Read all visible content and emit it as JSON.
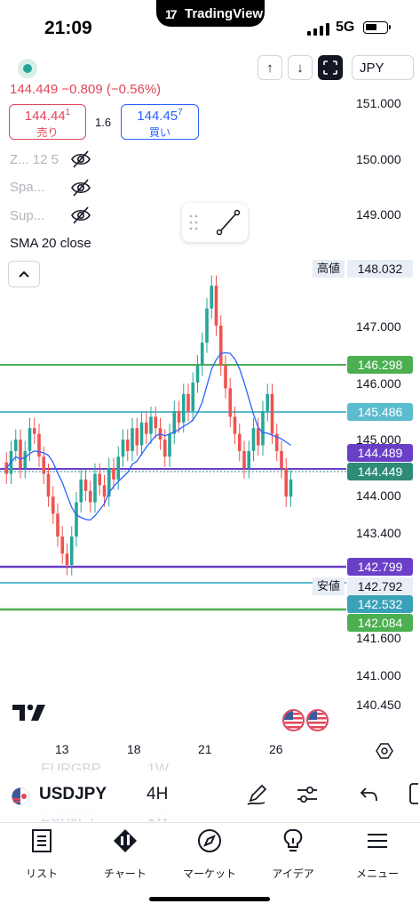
{
  "status_bar": {
    "time": "21:09",
    "app": "TradingView",
    "network": "5G"
  },
  "toolbar": {
    "currency": "JPY",
    "up_arrow": "↑",
    "down_arrow": "↓"
  },
  "quote": {
    "last": "144.449",
    "change": "−0.809",
    "change_pct": "(−0.56%)",
    "sell_price_main": "144.44",
    "sell_price_sup": "1",
    "sell_label": "売り",
    "buy_price_main": "144.45",
    "buy_price_sup": "7",
    "buy_label": "買い",
    "spread": "1.6"
  },
  "indicators": [
    {
      "label": "Z... 12 5"
    },
    {
      "label": "Spa..."
    },
    {
      "label": "Sup..."
    }
  ],
  "sma_label": "SMA 20 close",
  "axis": {
    "ticks": [
      "151.000",
      "150.000",
      "149.000",
      "147.000",
      "146.000",
      "145.000",
      "144.000",
      "143.400",
      "141.600",
      "141.000",
      "140.450"
    ],
    "high_tag": "高値",
    "high_value": "148.032",
    "low_tag": "安値",
    "low_value": "142.792",
    "levels": [
      {
        "value": "146.298",
        "color": "#4caf50"
      },
      {
        "value": "145.486",
        "color": "#5bbccf"
      },
      {
        "value": "144.489",
        "color": "#6a3fc8"
      },
      {
        "value": "144.449",
        "color": "#2e8b77"
      },
      {
        "value": "142.799",
        "color": "#6a3fc8"
      },
      {
        "value": "142.532",
        "color": "#3aa2b8"
      },
      {
        "value": "142.084",
        "color": "#4caf50"
      }
    ]
  },
  "dates": [
    "13",
    "18",
    "21",
    "26"
  ],
  "symbol_bar": {
    "symbol": "USDJPY",
    "interval": "4H",
    "ghost_1": "EURGBP",
    "ghost_1_tf": "1W",
    "ghost_2": "EURJPY",
    "ghost_2_tf": "1W"
  },
  "nav": [
    {
      "label": "リスト",
      "icon": "list-icon"
    },
    {
      "label": "チャート",
      "icon": "chart-icon"
    },
    {
      "label": "マーケット",
      "icon": "compass-icon"
    },
    {
      "label": "アイデア",
      "icon": "lightbulb-icon"
    },
    {
      "label": "メニュー",
      "icon": "menu-icon"
    }
  ],
  "colors": {
    "up": "#26a69a",
    "down": "#ef5350",
    "sma": "#2962ff",
    "accent": "#131722"
  }
}
